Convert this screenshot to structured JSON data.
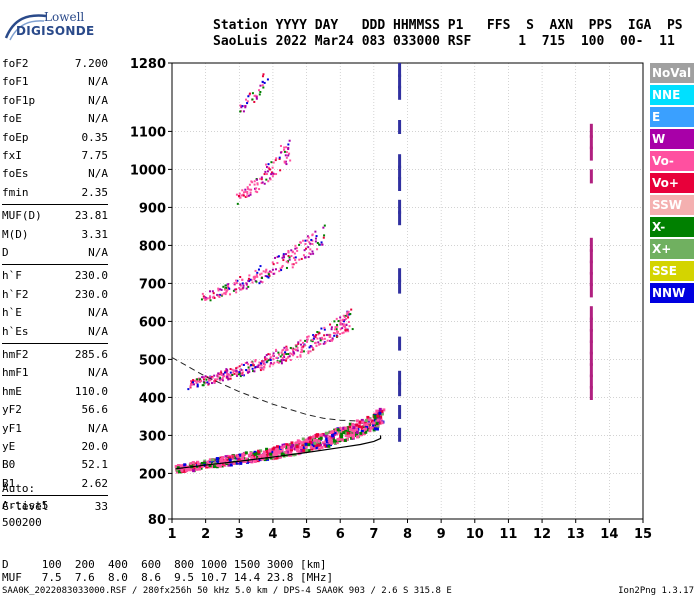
{
  "logo": {
    "line1": "Lowell",
    "line2": "DIGISONDE"
  },
  "header": {
    "labels_line": "Station YYYY DAY   DDD HHMMSS P1   FFS  S  AXN  PPS  IGA  PS",
    "values_line": "SaoLuis 2022 Mar24 083 033000 RSF      1  715  100  00-  11"
  },
  "params_group1": [
    {
      "name": "foF2",
      "value": "7.200"
    },
    {
      "name": "foF1",
      "value": "N/A"
    },
    {
      "name": "foF1p",
      "value": "N/A"
    },
    {
      "name": "foE",
      "value": "N/A"
    },
    {
      "name": "foEp",
      "value": "0.35"
    },
    {
      "name": "fxI",
      "value": "7.75"
    },
    {
      "name": "foEs",
      "value": "N/A"
    },
    {
      "name": "fmin",
      "value": "2.35"
    }
  ],
  "params_group2": [
    {
      "name": "MUF(D)",
      "value": "23.81"
    },
    {
      "name": "M(D)",
      "value": "3.31"
    },
    {
      "name": "D",
      "value": "N/A"
    }
  ],
  "params_group3": [
    {
      "name": "h`F",
      "value": "230.0"
    },
    {
      "name": "h`F2",
      "value": "230.0"
    },
    {
      "name": "h`E",
      "value": "N/A"
    },
    {
      "name": "h`Es",
      "value": "N/A"
    }
  ],
  "params_group4": [
    {
      "name": "hmF2",
      "value": "285.6"
    },
    {
      "name": "hmF1",
      "value": "N/A"
    },
    {
      "name": "hmE",
      "value": "110.0"
    },
    {
      "name": "yF2",
      "value": "56.6"
    },
    {
      "name": "yF1",
      "value": "N/A"
    },
    {
      "name": "yE",
      "value": "20.0"
    },
    {
      "name": "B0",
      "value": "52.1"
    },
    {
      "name": "B1",
      "value": "2.62"
    }
  ],
  "params_group5": [
    {
      "name": "C-level",
      "value": "33"
    }
  ],
  "auto_block": [
    "Auto:",
    "Artist5",
    "500200"
  ],
  "legend": [
    {
      "label": "NoVal",
      "color": "#a0a0a0"
    },
    {
      "label": "NNE",
      "color": "#00e0ff"
    },
    {
      "label": "E",
      "color": "#3aa0ff"
    },
    {
      "label": "W",
      "color": "#a800a8"
    },
    {
      "label": "Vo-",
      "color": "#ff50a0"
    },
    {
      "label": "Vo+",
      "color": "#e8003a"
    },
    {
      "label": "SSW",
      "color": "#f4b0b0"
    },
    {
      "label": "X-",
      "color": "#008000"
    },
    {
      "label": "X+",
      "color": "#70b060"
    },
    {
      "label": "SSE",
      "color": "#d4d400"
    },
    {
      "label": "NNW",
      "color": "#0000e0"
    }
  ],
  "dmuf": {
    "d_line": "D     100  200  400  600  800 1000 1500 3000 [km]",
    "muf_line": "MUF   7.5  7.6  8.0  8.6  9.5 10.7 14.4 23.8 [MHz]"
  },
  "footer": "SAA0K_2022083033000.RSF / 280fx256h 50 kHz 5.0 km / DPS-4 SAA0K 903 / 2.6 S 315.8 E",
  "version": "Ion2Png 1.3.17",
  "chart_data": {
    "type": "scatter",
    "x_ticks": [
      1,
      2,
      3,
      4,
      5,
      6,
      7,
      8,
      9,
      10,
      11,
      12,
      13,
      14,
      15
    ],
    "y_ticks": [
      80,
      200,
      300,
      400,
      500,
      600,
      700,
      800,
      900,
      1000,
      1100,
      1280
    ],
    "xlim": [
      1,
      15
    ],
    "ylim": [
      80,
      1280
    ],
    "grid": true,
    "legend_position": "right",
    "traces": [
      {
        "name": "F2 trace 1st hop",
        "x": [
          1.1,
          1.5,
          2.0,
          2.5,
          3.0,
          3.5,
          4.0,
          4.5,
          5.0,
          5.5,
          6.0,
          6.5,
          7.0,
          7.2
        ],
        "y": [
          215,
          220,
          228,
          235,
          243,
          250,
          258,
          268,
          280,
          292,
          305,
          320,
          340,
          360
        ]
      },
      {
        "name": "F2 trace 2nd hop",
        "x": [
          1.5,
          2.0,
          2.5,
          3.0,
          3.5,
          4.0,
          4.5,
          5.0,
          5.5,
          6.0,
          6.3
        ],
        "y": [
          435,
          448,
          460,
          472,
          488,
          505,
          520,
          540,
          565,
          590,
          610
        ]
      },
      {
        "name": "F2 trace 3rd hop",
        "x": [
          1.9,
          2.5,
          3.0,
          3.5,
          4.0,
          4.5,
          5.0,
          5.5
        ],
        "y": [
          665,
          680,
          700,
          720,
          745,
          770,
          800,
          830
        ]
      },
      {
        "name": "F2 trace 4th hop",
        "x": [
          2.9,
          3.3,
          3.7,
          4.1,
          4.5
        ],
        "y": [
          920,
          950,
          985,
          1020,
          1060
        ]
      },
      {
        "name": "F2 trace 5th hop",
        "x": [
          3.0,
          3.4,
          3.8
        ],
        "y": [
          1160,
          1200,
          1250
        ]
      }
    ],
    "profile_curve": {
      "x": [
        1.1,
        2.0,
        3.0,
        4.0,
        5.0,
        6.0,
        6.6,
        7.0,
        7.2,
        7.2
      ],
      "y": [
        212,
        222,
        232,
        243,
        255,
        268,
        276,
        284,
        292,
        300
      ]
    },
    "dashed_curve": {
      "x": [
        1.0,
        2.0,
        3.0,
        4.0,
        5.0,
        5.5,
        6.0,
        6.5
      ],
      "y": [
        505,
        455,
        415,
        382,
        355,
        345,
        340,
        338
      ]
    },
    "vertical_markers": [
      {
        "x": 7.75,
        "y_from": 300,
        "y_to": 1280,
        "color": "#3030a0"
      },
      {
        "x": 13.45,
        "y_from": 380,
        "y_to": 1140,
        "color": "#b02080"
      }
    ]
  }
}
